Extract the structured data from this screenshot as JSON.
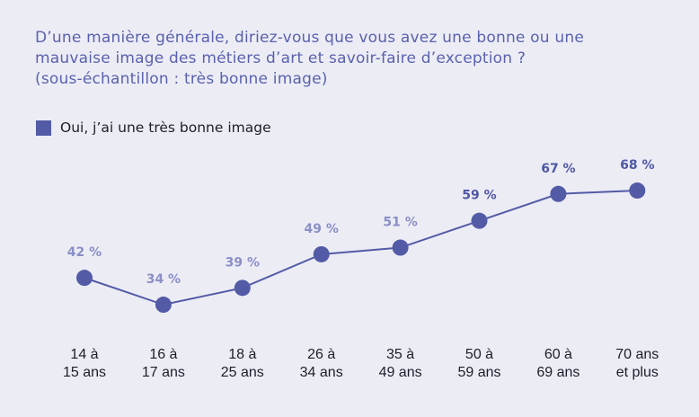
{
  "title": {
    "line1": "D’une manière générale, diriez-vous que vous avez une bonne ou une",
    "line2": "mauvaise image des métiers d’art et savoir-faire d’exception ?",
    "line3": "(sous-échantillon : très bonne image)"
  },
  "colors": {
    "series": "#535ba6",
    "label_light": "#8a8fc6",
    "label_dark": "#4e57a4",
    "background": "#ececf5"
  },
  "chart_data": {
    "type": "line",
    "title": "D’une manière générale, diriez-vous que vous avez une bonne ou une mauvaise image des métiers d’art et savoir-faire d’exception ? (sous-échantillon : très bonne image)",
    "legend_position": "top-left",
    "grid": false,
    "categories": [
      [
        "14 à",
        "15 ans"
      ],
      [
        "16 à",
        "17 ans"
      ],
      [
        "18 à",
        "25 ans"
      ],
      [
        "26 à",
        "34 ans"
      ],
      [
        "35 à",
        "49 ans"
      ],
      [
        "50 à",
        "59 ans"
      ],
      [
        "60 à",
        "69 ans"
      ],
      [
        "70 ans",
        "et plus"
      ]
    ],
    "series": [
      {
        "name": "Oui, j’ai une très bonne image",
        "values": [
          42,
          34,
          39,
          49,
          51,
          59,
          67,
          68
        ]
      }
    ],
    "data_labels": [
      "42 %",
      "34 %",
      "39 %",
      "49 %",
      "51 %",
      "59 %",
      "67 %",
      "68 %"
    ],
    "ylim": [
      0,
      100
    ]
  }
}
